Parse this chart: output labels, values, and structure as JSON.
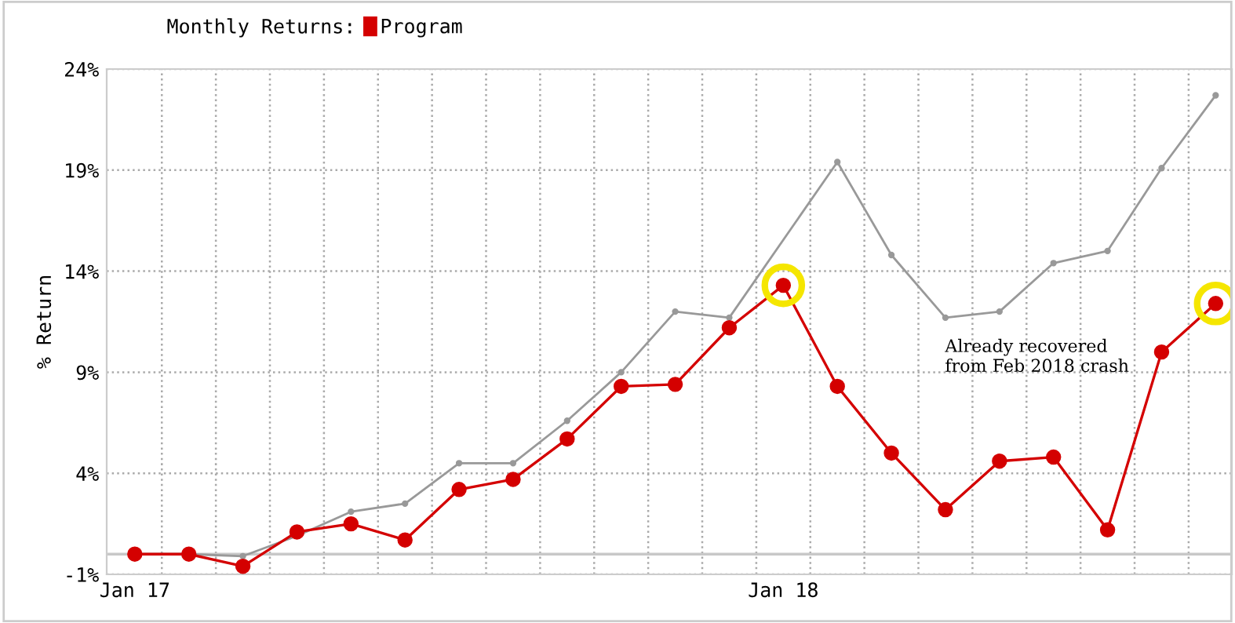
{
  "chart_data": {
    "type": "line",
    "ylabel": "% Return",
    "legend_title": "Monthly Returns:",
    "categories": [
      "Jan 17",
      null,
      null,
      null,
      null,
      null,
      null,
      null,
      null,
      null,
      null,
      null,
      "Jan 18",
      null,
      null,
      null,
      null,
      null,
      null,
      null,
      null
    ],
    "series": [
      {
        "color": "#999999",
        "marker": "none",
        "values": [
          0,
          0,
          -0.1,
          0.9,
          2.1,
          2.5,
          4.5,
          4.5,
          6.6,
          9.0,
          12.0,
          11.7,
          null,
          19.4,
          14.8,
          11.7,
          12.0,
          14.4,
          15.0,
          19.1,
          22.7
        ]
      },
      {
        "name": "Program",
        "color": "#d40000",
        "marker": "circle",
        "values": [
          0,
          0,
          -0.6,
          1.1,
          1.5,
          0.7,
          3.2,
          3.7,
          5.7,
          8.3,
          8.4,
          11.2,
          13.3,
          8.3,
          5.0,
          2.2,
          4.6,
          4.8,
          1.2,
          10.0,
          12.4
        ]
      }
    ],
    "ylim": [
      -1,
      24
    ],
    "yticks": [
      {
        "value": -1,
        "label": "-1%"
      },
      {
        "value": 4,
        "label": "4%"
      },
      {
        "value": 9,
        "label": "9%"
      },
      {
        "value": 14,
        "label": "14%"
      },
      {
        "value": 19,
        "label": "19%"
      },
      {
        "value": 24,
        "label": "24%"
      }
    ],
    "ref_lines": [
      {
        "axis": "y",
        "value": 0,
        "label": null,
        "color": "#c8c8c8"
      }
    ],
    "annotations": [
      "Already recovered\nfrom Feb 2018 crash"
    ],
    "grid": true,
    "legend": "top left",
    "line_style": "solid"
  }
}
